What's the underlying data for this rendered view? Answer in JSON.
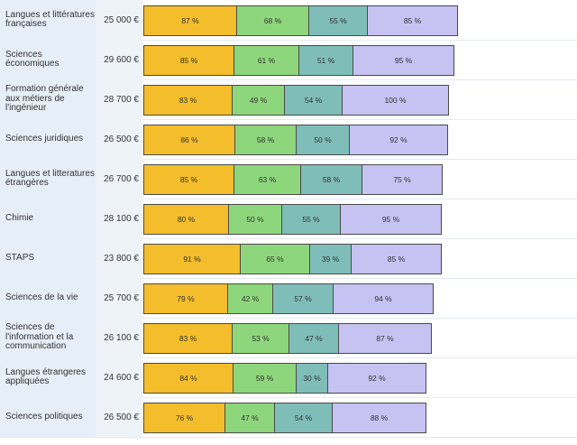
{
  "chart_data": {
    "type": "bar",
    "stacked": true,
    "orientation": "horizontal",
    "colors": [
      "#f3bd2b",
      "#8ed67b",
      "#7fbdb8",
      "#c6c2f2"
    ],
    "rows": [
      {
        "category": "Langues et littératures françaises",
        "salary": "25 000 €",
        "values": [
          87,
          68,
          55,
          85
        ],
        "labels": [
          "87 %",
          "68 %",
          "55 %",
          "85 %"
        ]
      },
      {
        "category": "Sciences économiques",
        "salary": "29 600 €",
        "values": [
          85,
          61,
          51,
          95
        ],
        "labels": [
          "85 %",
          "61 %",
          "51 %",
          "95 %"
        ]
      },
      {
        "category": "Formation générale aux métiers de l'ingénieur",
        "salary": "28 700 €",
        "values": [
          83,
          49,
          54,
          100
        ],
        "labels": [
          "83 %",
          "49 %",
          "54 %",
          "100 %"
        ]
      },
      {
        "category": "Sciences juridiques",
        "salary": "26 500 €",
        "values": [
          86,
          58,
          50,
          92
        ],
        "labels": [
          "86 %",
          "58 %",
          "50 %",
          "92 %"
        ]
      },
      {
        "category": "Langues et litteratures étrangères",
        "salary": "26 700 €",
        "values": [
          85,
          63,
          58,
          75
        ],
        "labels": [
          "85 %",
          "63 %",
          "58 %",
          "75 %"
        ]
      },
      {
        "category": "Chimie",
        "salary": "28 100 €",
        "values": [
          80,
          50,
          55,
          95
        ],
        "labels": [
          "80 %",
          "50 %",
          "55 %",
          "95 %"
        ]
      },
      {
        "category": "STAPS",
        "salary": "23 800 €",
        "values": [
          91,
          65,
          39,
          85
        ],
        "labels": [
          "91 %",
          "65 %",
          "39 %",
          "85 %"
        ]
      },
      {
        "category": "Sciences de la vie",
        "salary": "25 700 €",
        "values": [
          79,
          42,
          57,
          94
        ],
        "labels": [
          "79 %",
          "42 %",
          "57 %",
          "94 %"
        ]
      },
      {
        "category": "Sciences de l'information et la communication",
        "salary": "26 100 €",
        "values": [
          83,
          53,
          47,
          87
        ],
        "labels": [
          "83 %",
          "53 %",
          "47 %",
          "87 %"
        ]
      },
      {
        "category": "Langues étrangeres appliquées",
        "salary": "24 600 €",
        "values": [
          84,
          59,
          30,
          92
        ],
        "labels": [
          "84 %",
          "59 %",
          "30 %",
          "92 %"
        ]
      },
      {
        "category": "Sciences politiques",
        "salary": "26 500 €",
        "values": [
          76,
          47,
          54,
          88
        ],
        "labels": [
          "76 %",
          "47 %",
          "54 %",
          "88 %"
        ]
      }
    ]
  }
}
